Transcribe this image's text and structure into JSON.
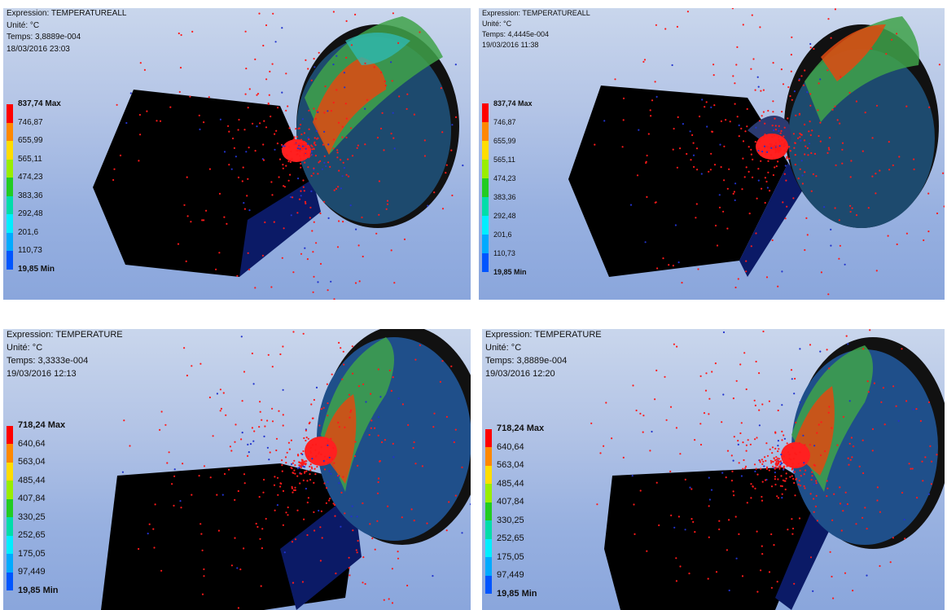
{
  "legend_colors": [
    "#ff0000",
    "#ff8800",
    "#ffdd00",
    "#99ee00",
    "#22cc22",
    "#00ddaa",
    "#00eeff",
    "#00aaff",
    "#0055ff",
    "#0000cc"
  ],
  "panels": [
    {
      "info": {
        "expression": "Expression: TEMPERATUREALL",
        "unit": "Unité: °C",
        "time": "Temps: 3,8889e-004",
        "date": "18/03/2016 23:03"
      },
      "legend": [
        "837,74 Max",
        "746,87",
        "655,99",
        "565,11",
        "474,23",
        "383,36",
        "292,48",
        "201,6",
        "110,73",
        "19,85 Min"
      ]
    },
    {
      "info": {
        "expression": "Expression: TEMPERATUREALL",
        "unit": "Unité: °C",
        "time": "Temps: 4,4445e-004",
        "date": "19/03/2016 11:38"
      },
      "legend": [
        "837,74 Max",
        "746,87",
        "655,99",
        "565,11",
        "474,23",
        "383,36",
        "292,48",
        "201,6",
        "110,73",
        "19,85 Min"
      ]
    },
    {
      "info": {
        "expression": "Expression: TEMPERATURE",
        "unit": "Unité: °C",
        "time": "Temps: 3,3333e-004",
        "date": "19/03/2016 12:13"
      },
      "legend": [
        "718,24 Max",
        "640,64",
        "563,04",
        "485,44",
        "407,84",
        "330,25",
        "252,65",
        "175,05",
        "97,449",
        "19,85 Min"
      ]
    },
    {
      "info": {
        "expression": "Expression: TEMPERATURE",
        "unit": "Unité: °C",
        "time": "Temps: 3,8889e-004",
        "date": "19/03/2016 12:20"
      },
      "legend": [
        "718,24 Max",
        "640,64",
        "563,04",
        "485,44",
        "407,84",
        "330,25",
        "252,65",
        "175,05",
        "97,449",
        "19,85 Min"
      ]
    }
  ]
}
